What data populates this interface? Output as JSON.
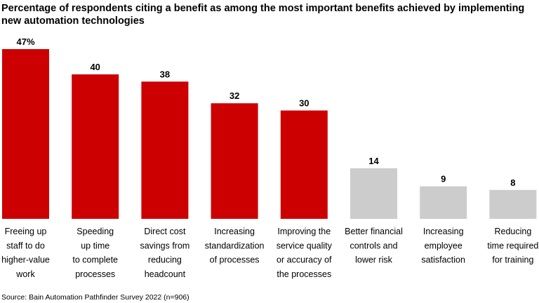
{
  "chart_data": {
    "type": "bar",
    "title": "Percentage of respondents citing a benefit as among the most important benefits achieved by implementing new automation technologies",
    "categories": [
      [
        "Freeing up",
        "staff to do",
        "higher-value",
        "work"
      ],
      [
        "Speeding",
        "up time",
        "to complete",
        "processes"
      ],
      [
        "Direct cost",
        "savings from",
        "reducing",
        "headcount"
      ],
      [
        "Increasing",
        "standardization",
        "of processes"
      ],
      [
        "Improving the",
        "service quality",
        "or accuracy of",
        "the processes"
      ],
      [
        "Better financial",
        "controls and",
        "lower risk"
      ],
      [
        "Increasing",
        "employee",
        "satisfaction"
      ],
      [
        "Reducing",
        "time required",
        "for training"
      ]
    ],
    "values": [
      47,
      40,
      38,
      32,
      30,
      14,
      9,
      8
    ],
    "data_labels": [
      "47%",
      "40",
      "38",
      "32",
      "30",
      "14",
      "9",
      "8"
    ],
    "colors": [
      "#cc0000",
      "#cc0000",
      "#cc0000",
      "#cc0000",
      "#cc0000",
      "#cccccc",
      "#cccccc",
      "#cccccc"
    ],
    "ylim": [
      0,
      47
    ],
    "grid": false,
    "source": "Source: Bain Automation Pathfinder Survey 2022 (n=906)"
  }
}
